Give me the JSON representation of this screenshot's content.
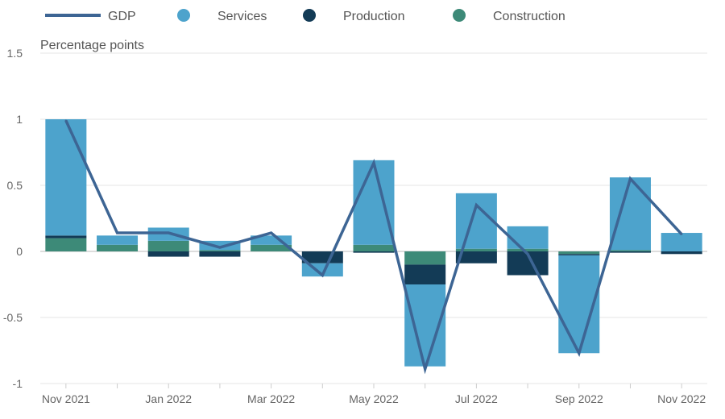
{
  "chart_data": {
    "type": "bar",
    "stacked": true,
    "ylabel": "Percentage points",
    "ylim": [
      -1,
      1.5
    ],
    "yticks": [
      1.5,
      1,
      0.5,
      0,
      -0.5,
      -1
    ],
    "ytick_labels": [
      "1.5",
      "1",
      "0.5",
      "0",
      "-0.5",
      "-1"
    ],
    "grid": true,
    "legend_position": "top",
    "categories": [
      "Nov 2021",
      "Dec 2021",
      "Jan 2022",
      "Feb 2022",
      "Mar 2022",
      "Apr 2022",
      "May 2022",
      "Jun 2022",
      "Jul 2022",
      "Aug 2022",
      "Sep 2022",
      "Oct 2022",
      "Nov 2022"
    ],
    "xtick_labels": [
      "Nov 2021",
      "",
      "Jan 2022",
      "",
      "Mar 2022",
      "",
      "May 2022",
      "",
      "Jul 2022",
      "",
      "Sep 2022",
      "",
      "Nov 2022"
    ],
    "series": [
      {
        "name": "Construction",
        "kind": "bar",
        "color": "#3d8a78",
        "values": [
          0.1,
          0.05,
          0.08,
          0.01,
          0.05,
          0.0,
          0.05,
          -0.1,
          0.02,
          0.02,
          -0.02,
          0.01,
          0.0
        ]
      },
      {
        "name": "Production",
        "kind": "bar",
        "color": "#133b56",
        "values": [
          0.02,
          0.0,
          -0.04,
          -0.04,
          0.0,
          -0.09,
          -0.01,
          -0.15,
          -0.09,
          -0.18,
          -0.01,
          -0.01,
          -0.02
        ]
      },
      {
        "name": "Services",
        "kind": "bar",
        "color": "#4da3cc",
        "values": [
          0.88,
          0.07,
          0.1,
          0.07,
          0.07,
          -0.1,
          0.64,
          -0.62,
          0.42,
          0.17,
          -0.74,
          0.55,
          0.14
        ]
      },
      {
        "name": "GDP",
        "kind": "line",
        "color": "#3d6594",
        "values": [
          0.99,
          0.14,
          0.14,
          0.03,
          0.14,
          -0.18,
          0.67,
          -0.89,
          0.35,
          -0.02,
          -0.77,
          0.55,
          0.13
        ]
      }
    ],
    "legend": [
      {
        "label": "GDP",
        "kind": "line",
        "color": "#3d6594"
      },
      {
        "label": "Services",
        "kind": "dot",
        "color": "#4da3cc"
      },
      {
        "label": "Production",
        "kind": "dot",
        "color": "#133b56"
      },
      {
        "label": "Construction",
        "kind": "dot",
        "color": "#3d8a78"
      }
    ],
    "colors": {
      "grid": "#e6e6e6",
      "zero": "#bbbbbb",
      "text": "#666666"
    }
  }
}
